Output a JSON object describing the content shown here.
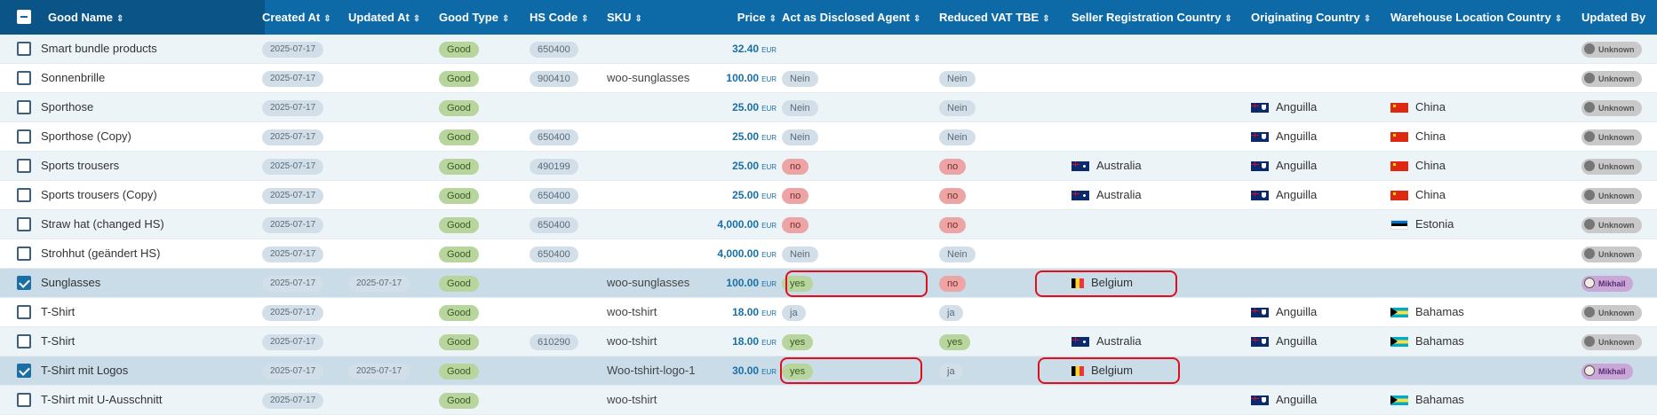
{
  "header": {
    "select_all": "",
    "columns": [
      {
        "key": "name",
        "label": "Good Name",
        "sort": "⇕"
      },
      {
        "key": "created",
        "label": "Created At",
        "sort": "⇕"
      },
      {
        "key": "updated",
        "label": "Updated At",
        "sort": "⇕"
      },
      {
        "key": "type",
        "label": "Good Type",
        "sort": "⇕"
      },
      {
        "key": "hs",
        "label": "HS Code",
        "sort": "⇕"
      },
      {
        "key": "sku",
        "label": "SKU",
        "sort": "⇕"
      },
      {
        "key": "price",
        "label": "Price",
        "sort": "⇕"
      },
      {
        "key": "agent",
        "label": "Act as Disclosed Agent",
        "sort": "⇕"
      },
      {
        "key": "vat",
        "label": "Reduced VAT TBE",
        "sort": "⇕"
      },
      {
        "key": "seller",
        "label": "Seller Registration Country",
        "sort": "⇕"
      },
      {
        "key": "orig",
        "label": "Originating Country",
        "sort": "⇕"
      },
      {
        "key": "wh",
        "label": "Warehouse Location Country",
        "sort": "⇕"
      },
      {
        "key": "by",
        "label": "Updated By",
        "sort": ""
      }
    ]
  },
  "rows": [
    {
      "name": "Smart bundle products",
      "checked": false,
      "created": "2025-07-17",
      "updated": "",
      "type": "Good",
      "hs": "650400",
      "sku": "",
      "price": "32.40",
      "currency": "EUR",
      "agent": {
        "text": "",
        "style": ""
      },
      "vat": {
        "text": "",
        "style": ""
      },
      "seller": {
        "name": "",
        "flag": ""
      },
      "orig": {
        "name": "",
        "flag": ""
      },
      "wh": {
        "name": "",
        "flag": ""
      },
      "by": {
        "name": "Unknown",
        "style": "unknown"
      }
    },
    {
      "name": "Sonnenbrille",
      "checked": false,
      "created": "2025-07-17",
      "updated": "",
      "type": "Good",
      "hs": "900410",
      "sku": "woo-sunglasses",
      "price": "100.00",
      "currency": "EUR",
      "agent": {
        "text": "Nein",
        "style": "neutral"
      },
      "vat": {
        "text": "Nein",
        "style": "neutral"
      },
      "seller": {
        "name": "",
        "flag": ""
      },
      "orig": {
        "name": "",
        "flag": ""
      },
      "wh": {
        "name": "",
        "flag": ""
      },
      "by": {
        "name": "Unknown",
        "style": "unknown"
      }
    },
    {
      "name": "Sporthose",
      "checked": false,
      "created": "2025-07-17",
      "updated": "",
      "type": "Good",
      "hs": "",
      "sku": "",
      "price": "25.00",
      "currency": "EUR",
      "agent": {
        "text": "Nein",
        "style": "neutral"
      },
      "vat": {
        "text": "Nein",
        "style": "neutral"
      },
      "seller": {
        "name": "",
        "flag": ""
      },
      "orig": {
        "name": "Anguilla",
        "flag": "ai"
      },
      "wh": {
        "name": "China",
        "flag": "cn"
      },
      "by": {
        "name": "Unknown",
        "style": "unknown"
      }
    },
    {
      "name": "Sporthose (Copy)",
      "checked": false,
      "created": "2025-07-17",
      "updated": "",
      "type": "Good",
      "hs": "650400",
      "sku": "",
      "price": "25.00",
      "currency": "EUR",
      "agent": {
        "text": "Nein",
        "style": "neutral"
      },
      "vat": {
        "text": "Nein",
        "style": "neutral"
      },
      "seller": {
        "name": "",
        "flag": ""
      },
      "orig": {
        "name": "Anguilla",
        "flag": "ai"
      },
      "wh": {
        "name": "China",
        "flag": "cn"
      },
      "by": {
        "name": "Unknown",
        "style": "unknown"
      }
    },
    {
      "name": "Sports trousers",
      "checked": false,
      "created": "2025-07-17",
      "updated": "",
      "type": "Good",
      "hs": "490199",
      "sku": "",
      "price": "25.00",
      "currency": "EUR",
      "agent": {
        "text": "no",
        "style": "no"
      },
      "vat": {
        "text": "no",
        "style": "no"
      },
      "seller": {
        "name": "Australia",
        "flag": "au"
      },
      "orig": {
        "name": "Anguilla",
        "flag": "ai"
      },
      "wh": {
        "name": "China",
        "flag": "cn"
      },
      "by": {
        "name": "Unknown",
        "style": "unknown"
      }
    },
    {
      "name": "Sports trousers (Copy)",
      "checked": false,
      "created": "2025-07-17",
      "updated": "",
      "type": "Good",
      "hs": "650400",
      "sku": "",
      "price": "25.00",
      "currency": "EUR",
      "agent": {
        "text": "no",
        "style": "no"
      },
      "vat": {
        "text": "no",
        "style": "no"
      },
      "seller": {
        "name": "Australia",
        "flag": "au"
      },
      "orig": {
        "name": "Anguilla",
        "flag": "ai"
      },
      "wh": {
        "name": "China",
        "flag": "cn"
      },
      "by": {
        "name": "Unknown",
        "style": "unknown"
      }
    },
    {
      "name": "Straw hat (changed HS)",
      "checked": false,
      "created": "2025-07-17",
      "updated": "",
      "type": "Good",
      "hs": "650400",
      "sku": "",
      "price": "4,000.00",
      "currency": "EUR",
      "agent": {
        "text": "no",
        "style": "no"
      },
      "vat": {
        "text": "no",
        "style": "no"
      },
      "seller": {
        "name": "",
        "flag": ""
      },
      "orig": {
        "name": "",
        "flag": ""
      },
      "wh": {
        "name": "Estonia",
        "flag": "ee"
      },
      "by": {
        "name": "Unknown",
        "style": "unknown"
      }
    },
    {
      "name": "Strohhut (geändert HS)",
      "checked": false,
      "created": "2025-07-17",
      "updated": "",
      "type": "Good",
      "hs": "650400",
      "sku": "",
      "price": "4,000.00",
      "currency": "EUR",
      "agent": {
        "text": "Nein",
        "style": "neutral"
      },
      "vat": {
        "text": "Nein",
        "style": "neutral"
      },
      "seller": {
        "name": "",
        "flag": ""
      },
      "orig": {
        "name": "",
        "flag": ""
      },
      "wh": {
        "name": "",
        "flag": ""
      },
      "by": {
        "name": "Unknown",
        "style": "unknown"
      }
    },
    {
      "name": "Sunglasses",
      "checked": true,
      "created": "2025-07-17",
      "updated": "2025-07-17",
      "type": "Good",
      "hs": "",
      "sku": "woo-sunglasses",
      "price": "100.00",
      "currency": "EUR",
      "agent": {
        "text": "yes",
        "style": "yes"
      },
      "vat": {
        "text": "no",
        "style": "no"
      },
      "seller": {
        "name": "Belgium",
        "flag": "be"
      },
      "orig": {
        "name": "",
        "flag": ""
      },
      "wh": {
        "name": "",
        "flag": ""
      },
      "by": {
        "name": "Mikhail",
        "style": "mikhail"
      }
    },
    {
      "name": "T-Shirt",
      "checked": false,
      "created": "2025-07-17",
      "updated": "",
      "type": "Good",
      "hs": "",
      "sku": "woo-tshirt",
      "price": "18.00",
      "currency": "EUR",
      "agent": {
        "text": "ja",
        "style": "neutral"
      },
      "vat": {
        "text": "ja",
        "style": "neutral"
      },
      "seller": {
        "name": "",
        "flag": ""
      },
      "orig": {
        "name": "Anguilla",
        "flag": "ai"
      },
      "wh": {
        "name": "Bahamas",
        "flag": "bs"
      },
      "by": {
        "name": "Unknown",
        "style": "unknown"
      }
    },
    {
      "name": "T-Shirt",
      "checked": false,
      "created": "2025-07-17",
      "updated": "",
      "type": "Good",
      "hs": "610290",
      "sku": "woo-tshirt",
      "price": "18.00",
      "currency": "EUR",
      "agent": {
        "text": "yes",
        "style": "yes"
      },
      "vat": {
        "text": "yes",
        "style": "yes"
      },
      "seller": {
        "name": "Australia",
        "flag": "au"
      },
      "orig": {
        "name": "Anguilla",
        "flag": "ai"
      },
      "wh": {
        "name": "Bahamas",
        "flag": "bs"
      },
      "by": {
        "name": "Unknown",
        "style": "unknown"
      }
    },
    {
      "name": "T-Shirt mit Logos",
      "checked": true,
      "created": "2025-07-17",
      "updated": "2025-07-17",
      "type": "Good",
      "hs": "",
      "sku": "Woo-tshirt-logo-1",
      "price": "30.00",
      "currency": "EUR",
      "agent": {
        "text": "yes",
        "style": "yes"
      },
      "vat": {
        "text": "ja",
        "style": "neutral"
      },
      "seller": {
        "name": "Belgium",
        "flag": "be"
      },
      "orig": {
        "name": "",
        "flag": ""
      },
      "wh": {
        "name": "",
        "flag": ""
      },
      "by": {
        "name": "Mikhail",
        "style": "mikhail"
      }
    },
    {
      "name": "T-Shirt mit U-Ausschnitt",
      "checked": false,
      "created": "2025-07-17",
      "updated": "",
      "type": "Good",
      "hs": "",
      "sku": "woo-tshirt",
      "price": "",
      "currency": "",
      "agent": {
        "text": "",
        "style": ""
      },
      "vat": {
        "text": "",
        "style": ""
      },
      "seller": {
        "name": "",
        "flag": ""
      },
      "orig": {
        "name": "Anguilla",
        "flag": "ai"
      },
      "wh": {
        "name": "Bahamas",
        "flag": "bs"
      },
      "by": {
        "name": "",
        "style": ""
      }
    }
  ]
}
